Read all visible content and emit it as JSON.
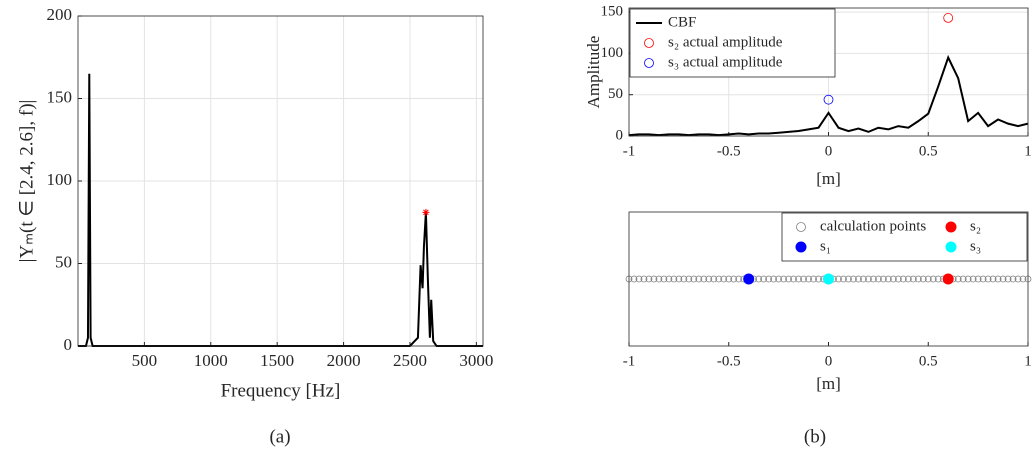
{
  "chart_data": [
    {
      "type": "line",
      "x_label": "Frequency [Hz]",
      "y_label": "|Yₘ(t ∈ [2.4, 2.6], f)|",
      "caption": "(a)",
      "xlim": [
        0,
        3050
      ],
      "ylim": [
        0,
        200
      ],
      "xticks": [
        500,
        1000,
        1500,
        2000,
        2500,
        3000
      ],
      "yticks": [
        0,
        50,
        100,
        150,
        200
      ],
      "grid": true,
      "legend": false,
      "series": [
        {
          "kind": "line",
          "color": "#000000",
          "x": [
            0,
            60,
            75,
            85,
            95,
            110,
            2500,
            2560,
            2580,
            2595,
            2605,
            2620,
            2635,
            2650,
            2660,
            2675,
            2700,
            3050
          ],
          "values": [
            0,
            0,
            5,
            165,
            5,
            0,
            0,
            5,
            49,
            35,
            60,
            81,
            40,
            5,
            28,
            3,
            0,
            0
          ]
        },
        {
          "kind": "scatter",
          "marker": "star",
          "color": "#ff0000",
          "x": [
            2620
          ],
          "values": [
            81
          ]
        }
      ]
    },
    {
      "type": "line",
      "x_label": "[m]",
      "y_label": "Amplitude",
      "xlim": [
        -1,
        1
      ],
      "ylim": [
        0,
        155
      ],
      "xticks": [
        -1,
        -0.5,
        0,
        0.5,
        1
      ],
      "yticks": [
        0,
        50,
        100,
        150
      ],
      "grid": true,
      "legend": "upper left",
      "legend_columns": 1,
      "series": [
        {
          "name": "CBF",
          "kind": "line",
          "color": "#000000",
          "x": [
            -1,
            -0.95,
            -0.9,
            -0.85,
            -0.8,
            -0.75,
            -0.7,
            -0.65,
            -0.6,
            -0.55,
            -0.5,
            -0.45,
            -0.4,
            -0.35,
            -0.3,
            -0.25,
            -0.2,
            -0.15,
            -0.1,
            -0.05,
            0,
            0.05,
            0.1,
            0.15,
            0.2,
            0.25,
            0.3,
            0.35,
            0.4,
            0.45,
            0.5,
            0.55,
            0.6,
            0.65,
            0.7,
            0.75,
            0.8,
            0.85,
            0.9,
            0.95,
            1
          ],
          "values": [
            1,
            2,
            2,
            1,
            2,
            2,
            1,
            2,
            2,
            1,
            2,
            3,
            2,
            3,
            3,
            4,
            5,
            6,
            8,
            10,
            28,
            10,
            6,
            9,
            5,
            10,
            8,
            12,
            10,
            18,
            27,
            60,
            95,
            70,
            18,
            28,
            12,
            20,
            15,
            12,
            15
          ]
        },
        {
          "name": "s₂ actual amplitude",
          "kind": "scatter",
          "marker": "open",
          "color": "#ff0000",
          "x": [
            0.6
          ],
          "values": [
            143
          ]
        },
        {
          "name": "s₃ actual amplitude",
          "kind": "scatter",
          "marker": "open",
          "color": "#0000ff",
          "x": [
            0
          ],
          "values": [
            44
          ]
        }
      ]
    },
    {
      "type": "scatter",
      "x_label": "[m]",
      "caption": "(b)",
      "xlim": [
        -1,
        1
      ],
      "ylim": [
        -1,
        1
      ],
      "xticks": [
        -1,
        -0.5,
        0,
        0.5,
        1
      ],
      "grid": false,
      "legend": "upper right",
      "legend_columns": 2,
      "series": [
        {
          "name": "calculation points",
          "kind": "scatter",
          "marker": "open",
          "color": "#808080",
          "x": [
            -1,
            -0.975,
            -0.95,
            -0.925,
            -0.9,
            -0.875,
            -0.85,
            -0.825,
            -0.8,
            -0.775,
            -0.75,
            -0.725,
            -0.7,
            -0.675,
            -0.65,
            -0.625,
            -0.6,
            -0.575,
            -0.55,
            -0.525,
            -0.5,
            -0.475,
            -0.45,
            -0.425,
            -0.4,
            -0.375,
            -0.35,
            -0.325,
            -0.3,
            -0.275,
            -0.25,
            -0.225,
            -0.2,
            -0.175,
            -0.15,
            -0.125,
            -0.1,
            -0.075,
            -0.05,
            -0.025,
            0,
            0.025,
            0.05,
            0.075,
            0.1,
            0.125,
            0.15,
            0.175,
            0.2,
            0.225,
            0.25,
            0.275,
            0.3,
            0.325,
            0.35,
            0.375,
            0.4,
            0.425,
            0.45,
            0.475,
            0.5,
            0.525,
            0.55,
            0.575,
            0.6,
            0.625,
            0.65,
            0.675,
            0.7,
            0.725,
            0.75,
            0.775,
            0.8,
            0.825,
            0.85,
            0.875,
            0.9,
            0.925,
            0.95,
            0.975,
            1
          ],
          "values": [
            0,
            0,
            0,
            0,
            0,
            0,
            0,
            0,
            0,
            0,
            0,
            0,
            0,
            0,
            0,
            0,
            0,
            0,
            0,
            0,
            0,
            0,
            0,
            0,
            0,
            0,
            0,
            0,
            0,
            0,
            0,
            0,
            0,
            0,
            0,
            0,
            0,
            0,
            0,
            0,
            0,
            0,
            0,
            0,
            0,
            0,
            0,
            0,
            0,
            0,
            0,
            0,
            0,
            0,
            0,
            0,
            0,
            0,
            0,
            0,
            0,
            0,
            0,
            0,
            0,
            0,
            0,
            0,
            0,
            0,
            0,
            0,
            0,
            0,
            0,
            0,
            0,
            0,
            0,
            0,
            0
          ]
        },
        {
          "name": "s₁",
          "kind": "scatter",
          "marker": "filled",
          "color": "#0000ff",
          "x": [
            -0.4
          ],
          "values": [
            0
          ]
        },
        {
          "name": "s₂",
          "kind": "scatter",
          "marker": "filled",
          "color": "#ff0000",
          "x": [
            0.6
          ],
          "values": [
            0
          ]
        },
        {
          "name": "s₃",
          "kind": "scatter",
          "marker": "filled",
          "color": "#00ffff",
          "x": [
            0
          ],
          "values": [
            0
          ]
        }
      ]
    }
  ]
}
